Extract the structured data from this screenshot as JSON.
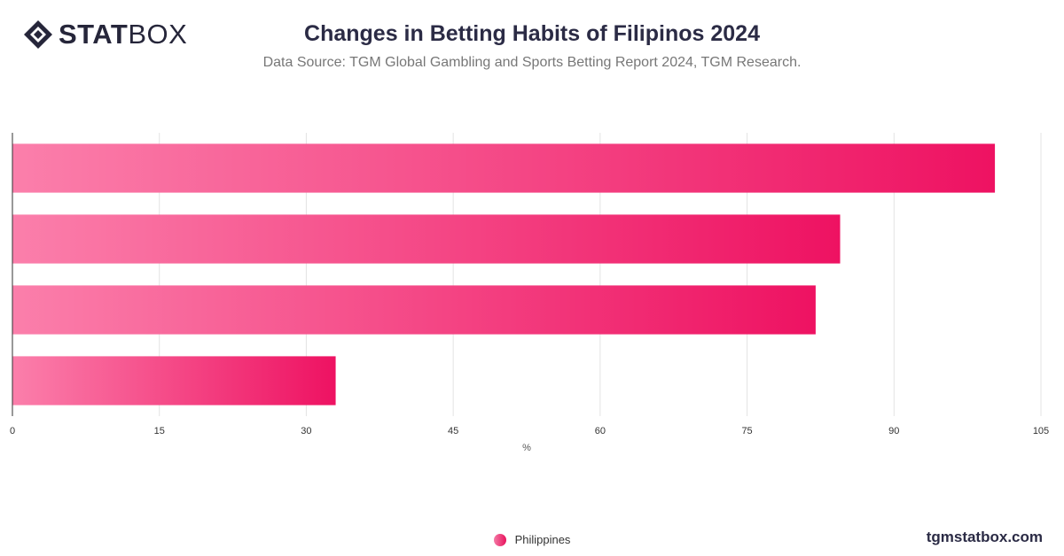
{
  "brand": {
    "logo_bold": "STAT",
    "logo_light": "BOX",
    "site": "tgmstatbox.com"
  },
  "header": {
    "title": "Changes in Betting Habits of Filipinos 2024",
    "subtitle": "Data Source: TGM Global Gambling and Sports Betting Report 2024, TGM Research."
  },
  "colors": {
    "bar_start": "#fb7fab",
    "bar_end": "#ee1262",
    "grid": "#e3e3e3",
    "axis": "#333333"
  },
  "chart_data": {
    "type": "bar",
    "orientation": "horizontal",
    "categories": [
      "",
      "",
      "",
      ""
    ],
    "series": [
      {
        "name": "Philippines",
        "values": [
          100.3,
          84.5,
          82,
          33
        ]
      }
    ],
    "xlabel": "%",
    "xlim": [
      0,
      105
    ],
    "xticks": [
      0,
      15,
      30,
      45,
      60,
      75,
      90,
      105
    ],
    "grid": true,
    "legend": "bottom-center"
  }
}
